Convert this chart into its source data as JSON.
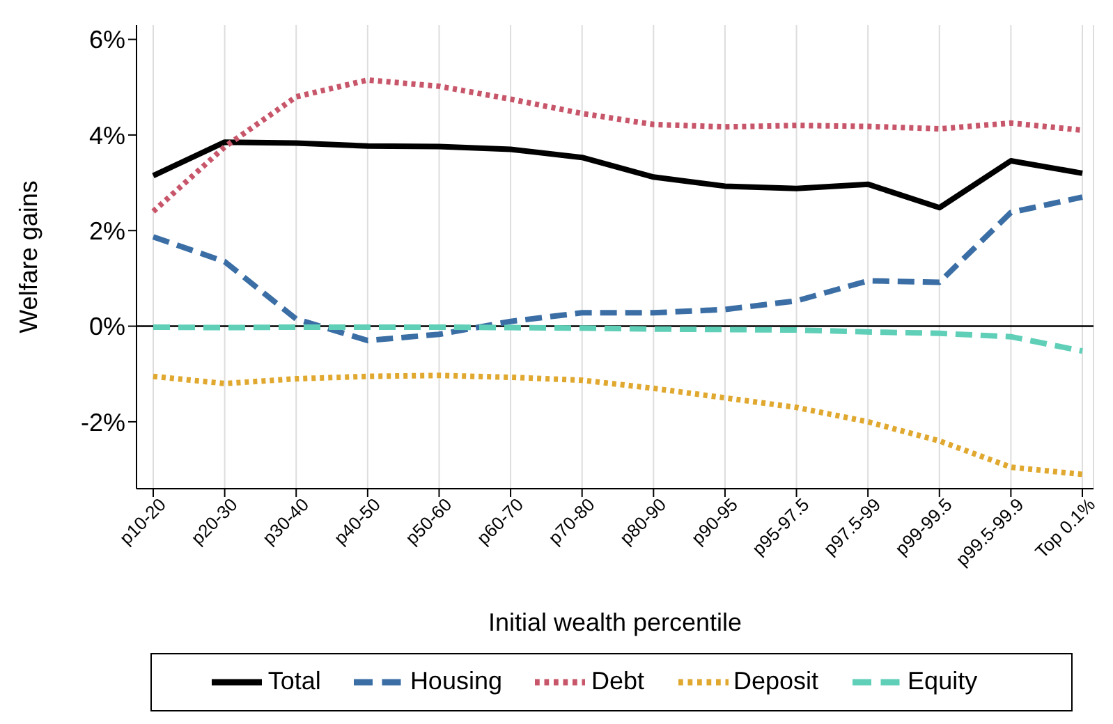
{
  "chart_data": {
    "type": "line",
    "xlabel": "Initial wealth percentile",
    "ylabel": "Welfare gains",
    "categories": [
      "p10-20",
      "p20-30",
      "p30-40",
      "p40-50",
      "p50-60",
      "p60-70",
      "p70-80",
      "p80-90",
      "p90-95",
      "p95-97.5",
      "p97.5-99",
      "p99-99.5",
      "p99.5-99.9",
      "Top 0.1%"
    ],
    "series": [
      {
        "name": "Total",
        "color": "#000000",
        "line_style": "solid",
        "values": [
          3.15,
          3.85,
          3.83,
          3.77,
          3.76,
          3.7,
          3.53,
          3.12,
          2.93,
          2.88,
          2.97,
          2.48,
          3.46,
          3.2
        ]
      },
      {
        "name": "Housing",
        "color": "#3a6ea5",
        "line_style": "dashed",
        "values": [
          1.87,
          1.35,
          0.15,
          -0.3,
          -0.17,
          0.1,
          0.28,
          0.28,
          0.35,
          0.53,
          0.95,
          0.92,
          2.38,
          2.7
        ]
      },
      {
        "name": "Debt",
        "color": "#c8566a",
        "line_style": "dotted",
        "values": [
          2.4,
          3.75,
          4.8,
          5.15,
          5.02,
          4.75,
          4.45,
          4.22,
          4.17,
          4.2,
          4.18,
          4.13,
          4.25,
          4.1
        ]
      },
      {
        "name": "Deposit",
        "color": "#e0a82e",
        "line_style": "dotted",
        "values": [
          -1.05,
          -1.2,
          -1.1,
          -1.05,
          -1.03,
          -1.07,
          -1.13,
          -1.3,
          -1.5,
          -1.7,
          -2.0,
          -2.4,
          -2.95,
          -3.1
        ]
      },
      {
        "name": "Equity",
        "color": "#5fcfb8",
        "line_style": "dashed",
        "values": [
          -0.02,
          -0.03,
          -0.02,
          -0.02,
          -0.02,
          -0.03,
          -0.04,
          -0.06,
          -0.07,
          -0.08,
          -0.12,
          -0.15,
          -0.22,
          -0.52
        ]
      }
    ],
    "ylim": [
      -3.4,
      6.3
    ],
    "yticks": [
      {
        "value": -2,
        "label": "-2%"
      },
      {
        "value": 0,
        "label": "0%"
      },
      {
        "value": 2,
        "label": "2%"
      },
      {
        "value": 4,
        "label": "4%"
      },
      {
        "value": 6,
        "label": "6%"
      }
    ],
    "ref_lines": [
      {
        "axis": "y",
        "value": 0,
        "color": "#000000"
      }
    ],
    "grid": "x",
    "legend": "bottom",
    "marker": "none"
  }
}
